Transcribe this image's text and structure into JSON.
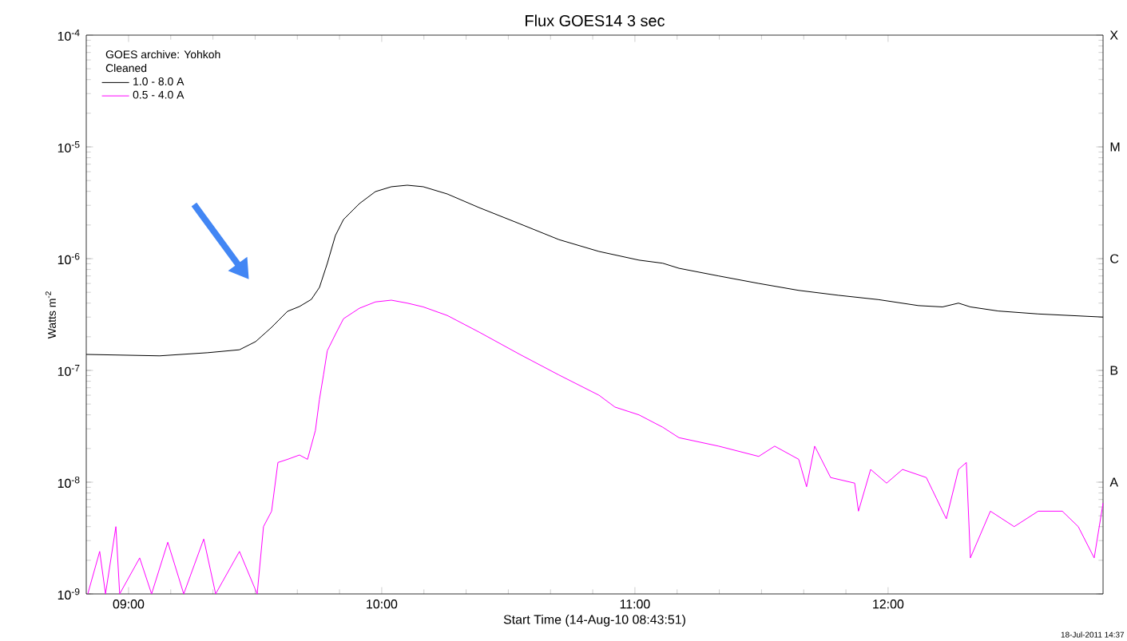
{
  "chart_data": {
    "type": "line",
    "title": "Flux  GOES14 3 sec",
    "xlabel": "Start Time (14-Aug-10 08:43:51)",
    "ylabel": "Watts m$^{-2}$",
    "legend_title": "GOES archive: Yohkoh",
    "annotations": [
      "Cleaned",
      "18-Jul-2011 14:37",
      "A",
      "B",
      "C",
      "M",
      "X"
    ],
    "legend": "top left",
    "log": "y",
    "xlim": [
      8.833,
      12.849
    ],
    "ylim": [
      1e-09,
      0.0001
    ],
    "xticks": [
      {
        "value": 9,
        "label": "09:00"
      },
      {
        "value": 10,
        "label": "10:00"
      },
      {
        "value": 11,
        "label": "11:00"
      },
      {
        "value": 12,
        "label": "12:00"
      }
    ],
    "yticks": [
      {
        "value": 1e-09,
        "label": "10$^{-9}$"
      },
      {
        "value": 1e-08,
        "label": "10$^{-8}$"
      },
      {
        "value": 1e-07,
        "label": "10$^{-7}$"
      },
      {
        "value": 1e-06,
        "label": "10$^{-6}$"
      },
      {
        "value": 1e-05,
        "label": "10$^{-5}$"
      },
      {
        "value": 0.0001,
        "label": "10$^{-4}$"
      }
    ],
    "series": [
      {
        "name": "1.0 - 8.0 A",
        "color": "#000000",
        "x": [
          8.833,
          9.123,
          9.312,
          9.438,
          9.502,
          9.565,
          9.596,
          9.628,
          9.675,
          9.722,
          9.754,
          9.785,
          9.817,
          9.849,
          9.912,
          9.975,
          10.038,
          10.101,
          10.164,
          10.259,
          10.385,
          10.543,
          10.7,
          10.858,
          11.016,
          11.11,
          11.174,
          11.331,
          11.489,
          11.647,
          11.804,
          11.962,
          12.12,
          12.215,
          12.278,
          12.325,
          12.435,
          12.593,
          12.849
        ],
        "values": [
          1.39e-07,
          1.35e-07,
          1.44e-07,
          1.53e-07,
          1.81e-07,
          2.43e-07,
          2.86e-07,
          3.38e-07,
          3.73e-07,
          4.32e-07,
          5.53e-07,
          9.06e-07,
          1.61e-06,
          2.24e-06,
          3.11e-06,
          3.98e-06,
          4.4e-06,
          4.54e-06,
          4.4e-06,
          3.79e-06,
          2.86e-06,
          2.06e-06,
          1.48e-06,
          1.16e-06,
          9.7e-07,
          9.1e-07,
          8.2e-07,
          7e-07,
          6e-07,
          5.2e-07,
          4.7e-07,
          4.3e-07,
          3.8e-07,
          3.7e-07,
          4e-07,
          3.7e-07,
          3.4e-07,
          3.2e-07,
          3e-07
        ]
      },
      {
        "name": "0.5 - 4.0 A",
        "color": "#ff00ff",
        "x": [
          8.839,
          8.886,
          8.909,
          8.95,
          8.965,
          9.044,
          9.091,
          9.155,
          9.218,
          9.297,
          9.344,
          9.438,
          9.508,
          9.533,
          9.565,
          9.59,
          9.628,
          9.675,
          9.707,
          9.738,
          9.754,
          9.77,
          9.785,
          9.817,
          9.849,
          9.912,
          9.975,
          10.038,
          10.101,
          10.164,
          10.259,
          10.385,
          10.543,
          10.7,
          10.858,
          10.921,
          11.016,
          11.11,
          11.174,
          11.331,
          11.489,
          11.552,
          11.647,
          11.678,
          11.71,
          11.773,
          11.868,
          11.883,
          11.931,
          11.994,
          12.057,
          12.151,
          12.23,
          12.278,
          12.309,
          12.325,
          12.404,
          12.498,
          12.593,
          12.688,
          12.751,
          12.814,
          12.849
        ],
        "values": [
          1e-09,
          2.4e-09,
          1e-09,
          4e-09,
          1e-09,
          2.1e-09,
          1e-09,
          2.9e-09,
          1e-09,
          3.1e-09,
          1e-09,
          2.4e-09,
          1e-09,
          4e-09,
          5.5e-09,
          1.5e-08,
          1.6e-08,
          1.75e-08,
          1.6e-08,
          2.9e-08,
          5.5e-08,
          9.1e-08,
          1.5e-07,
          2.1e-07,
          2.9e-07,
          3.6e-07,
          4.1e-07,
          4.25e-07,
          4e-07,
          3.7e-07,
          3.1e-07,
          2.2e-07,
          1.4e-07,
          9.1e-08,
          6e-08,
          4.7e-08,
          4e-08,
          3.1e-08,
          2.5e-08,
          2.1e-08,
          1.7e-08,
          2.1e-08,
          1.6e-08,
          9.1e-09,
          2.1e-08,
          1.1e-08,
          9.8e-09,
          5.5e-09,
          1.3e-08,
          9.8e-09,
          1.3e-08,
          1.1e-08,
          4.7e-09,
          1.3e-08,
          1.5e-08,
          2.1e-09,
          5.5e-09,
          4e-09,
          5.5e-09,
          5.5e-09,
          4e-09,
          2.1e-09,
          6.5e-09
        ]
      }
    ]
  }
}
